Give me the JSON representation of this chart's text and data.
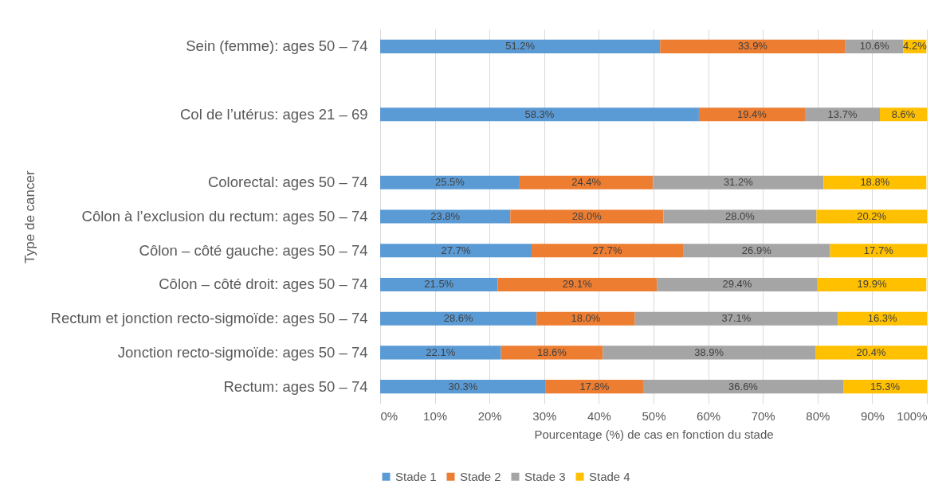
{
  "chart_data": {
    "type": "bar",
    "orientation": "horizontal",
    "stacked": true,
    "xlabel": "Pourcentage (%) de cas en fonction du stade",
    "ylabel": "Type de cancer",
    "categories": [
      "Sein (femme): ages 50 – 74",
      null,
      "Col de l’utérus: ages 21 – 69",
      null,
      "Colorectal: ages 50 – 74",
      "Côlon à l’exclusion du rectum: ages 50 – 74",
      "Côlon – côté gauche: ages 50 – 74",
      "Côlon – côté droit: ages 50 – 74",
      "Rectum et jonction recto-sigmoïde: ages 50 – 74",
      "Jonction recto-sigmoïde: ages 50 – 74",
      "Rectum: ages 50 – 74"
    ],
    "series": [
      {
        "name": "Stade 1",
        "color": "#5b9bd5",
        "values": [
          51.2,
          null,
          58.3,
          null,
          25.5,
          23.8,
          27.7,
          21.5,
          28.6,
          22.1,
          30.3
        ],
        "value_labels": [
          "51.2%",
          null,
          "58.3%",
          null,
          "25.5%",
          "23.8%",
          "27.7%",
          "21.5%",
          "28.6%",
          "22.1%",
          "30.3%"
        ]
      },
      {
        "name": "Stade 2",
        "color": "#ed7d31",
        "values": [
          33.9,
          null,
          19.4,
          null,
          24.4,
          28.0,
          27.7,
          29.1,
          18.0,
          18.6,
          17.8
        ],
        "value_labels": [
          "33.9%",
          null,
          "19.4%",
          null,
          "24.4%",
          "28.0%",
          "27.7%",
          "29.1%",
          "18.0%",
          "18.6%",
          "17.8%"
        ]
      },
      {
        "name": "Stade 3",
        "color": "#a5a5a5",
        "values": [
          10.6,
          null,
          13.7,
          null,
          31.2,
          28.0,
          26.9,
          29.4,
          37.1,
          38.9,
          36.6
        ],
        "value_labels": [
          "10.6%",
          null,
          "13.7%",
          null,
          "31.2%",
          "28.0%",
          "26.9%",
          "29.4%",
          "37.1%",
          "38.9%",
          "36.6%"
        ]
      },
      {
        "name": "Stade 4",
        "color": "#ffc000",
        "values": [
          4.2,
          null,
          8.6,
          null,
          18.8,
          20.2,
          17.7,
          19.9,
          16.3,
          20.4,
          15.3
        ],
        "value_labels": [
          "4.2%",
          null,
          "8.6%",
          null,
          "18.8%",
          "20.2%",
          "17.7%",
          "19.9%",
          "16.3%",
          "20.4%",
          "15.3%"
        ]
      }
    ],
    "xlim": [
      0,
      100
    ],
    "xticks": [
      {
        "value": 0,
        "label": "0%"
      },
      {
        "value": 10,
        "label": "10%"
      },
      {
        "value": 20,
        "label": "20%"
      },
      {
        "value": 30,
        "label": "30%"
      },
      {
        "value": 40,
        "label": "40%"
      },
      {
        "value": 50,
        "label": "50%"
      },
      {
        "value": 60,
        "label": "60%"
      },
      {
        "value": 70,
        "label": "70%"
      },
      {
        "value": 80,
        "label": "80%"
      },
      {
        "value": 90,
        "label": "90%"
      },
      {
        "value": 100,
        "label": "100%"
      }
    ],
    "grid": "x",
    "legend": "bottom"
  }
}
